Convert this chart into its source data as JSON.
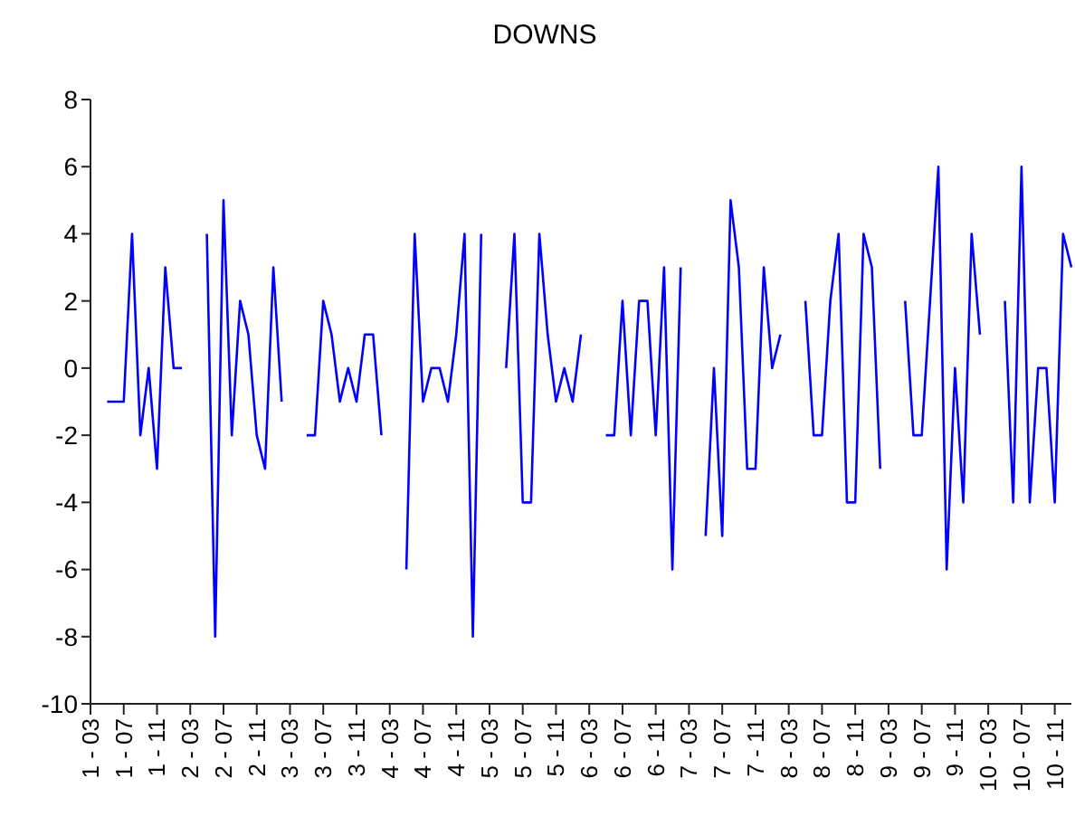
{
  "chart_data": {
    "type": "line",
    "title": "DOWNS",
    "categories": [
      "1 - 03",
      null,
      null,
      null,
      "1 - 07",
      null,
      null,
      null,
      "1 - 11",
      null,
      null,
      null,
      "2 - 03",
      null,
      null,
      null,
      "2 - 07",
      null,
      null,
      null,
      "2 - 11",
      null,
      null,
      null,
      "3 - 03",
      null,
      null,
      null,
      "3 - 07",
      null,
      null,
      null,
      "3 - 11",
      null,
      null,
      null,
      "4 - 03",
      null,
      null,
      null,
      "4 - 07",
      null,
      null,
      null,
      "4 - 11",
      null,
      null,
      null,
      "5 - 03",
      null,
      null,
      null,
      "5 - 07",
      null,
      null,
      null,
      "5 - 11",
      null,
      null,
      null,
      "6 - 03",
      null,
      null,
      null,
      "6 - 07",
      null,
      null,
      null,
      "6 - 11",
      null,
      null,
      null,
      "7 - 03",
      null,
      null,
      null,
      "7 - 07",
      null,
      null,
      null,
      "7 - 11",
      null,
      null,
      null,
      "8 - 03",
      null,
      null,
      null,
      "8 - 07",
      null,
      null,
      null,
      "8 - 11",
      null,
      null,
      null,
      "9 - 03",
      null,
      null,
      null,
      "9 - 07",
      null,
      null,
      null,
      "9 - 11",
      null,
      null,
      null,
      "10 - 03",
      null,
      null,
      null,
      "10 - 07",
      null,
      null,
      null,
      "10 - 11",
      null,
      null
    ],
    "series": [
      {
        "color": "#0000ff",
        "values": [
          null,
          null,
          -1,
          -1,
          -1,
          4,
          -2,
          0,
          -3,
          3,
          0,
          0,
          null,
          null,
          4,
          -8,
          5,
          -2,
          2,
          1,
          -2,
          -3,
          3,
          -1,
          null,
          null,
          -2,
          -2,
          2,
          1,
          -1,
          0,
          -1,
          1,
          1,
          -2,
          null,
          null,
          -6,
          4,
          -1,
          0,
          0,
          -1,
          1,
          4,
          -8,
          4,
          null,
          null,
          0,
          4,
          -4,
          -4,
          4,
          1,
          -1,
          0,
          -1,
          1,
          null,
          null,
          -2,
          -2,
          2,
          -2,
          2,
          2,
          -2,
          3,
          -6,
          3,
          null,
          null,
          -5,
          0,
          -5,
          5,
          3,
          -3,
          -3,
          3,
          0,
          1,
          null,
          null,
          2,
          -2,
          -2,
          2,
          4,
          -4,
          -4,
          4,
          3,
          -3,
          null,
          null,
          2,
          -2,
          -2,
          2,
          6,
          -6,
          0,
          -4,
          4,
          1,
          null,
          null,
          2,
          -4,
          6,
          -4,
          0,
          0,
          -4,
          4,
          3
        ]
      }
    ],
    "ylim": [
      -10,
      8
    ],
    "yticks": [
      -10,
      -8,
      -6,
      -4,
      -2,
      0,
      2,
      4,
      6,
      8
    ],
    "marker": "none",
    "line_style": "solid"
  }
}
